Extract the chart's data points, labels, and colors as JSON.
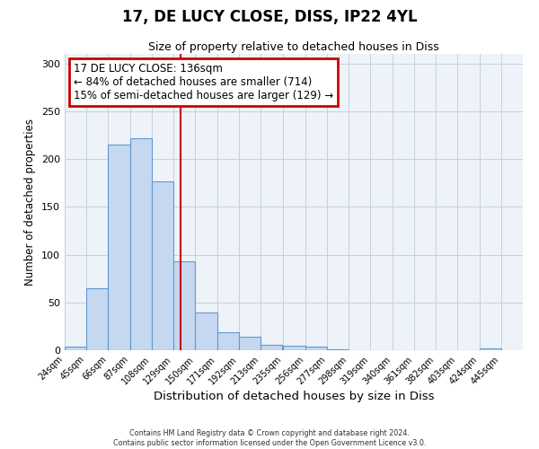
{
  "title": "17, DE LUCY CLOSE, DISS, IP22 4YL",
  "subtitle": "Size of property relative to detached houses in Diss",
  "xlabel": "Distribution of detached houses by size in Diss",
  "ylabel": "Number of detached properties",
  "bar_left_edges": [
    24,
    45,
    66,
    87,
    108,
    129,
    150,
    171,
    192,
    213,
    235,
    256,
    277,
    298,
    319,
    340,
    361,
    382,
    403,
    424
  ],
  "bar_heights": [
    4,
    65,
    215,
    222,
    177,
    93,
    39,
    19,
    14,
    6,
    5,
    4,
    1,
    0,
    0,
    0,
    0,
    0,
    0,
    2
  ],
  "bin_width": 21,
  "bar_color": "#c5d8f0",
  "bar_edge_color": "#5b9bd5",
  "tick_labels": [
    "24sqm",
    "45sqm",
    "66sqm",
    "87sqm",
    "108sqm",
    "129sqm",
    "150sqm",
    "171sqm",
    "192sqm",
    "213sqm",
    "235sqm",
    "256sqm",
    "277sqm",
    "298sqm",
    "319sqm",
    "340sqm",
    "361sqm",
    "382sqm",
    "403sqm",
    "424sqm",
    "445sqm"
  ],
  "vline_x": 136,
  "vline_color": "#cc0000",
  "annotation_line1": "17 DE LUCY CLOSE: 136sqm",
  "annotation_line2": "← 84% of detached houses are smaller (714)",
  "annotation_line3": "15% of semi-detached houses are larger (129) →",
  "annotation_box_color": "#cc0000",
  "ylim": [
    0,
    310
  ],
  "yticks": [
    0,
    50,
    100,
    150,
    200,
    250,
    300
  ],
  "xlim_left": 24,
  "xlim_right": 466,
  "background_color": "#eef2f9",
  "footer_line1": "Contains HM Land Registry data © Crown copyright and database right 2024.",
  "footer_line2": "Contains public sector information licensed under the Open Government Licence v3.0."
}
